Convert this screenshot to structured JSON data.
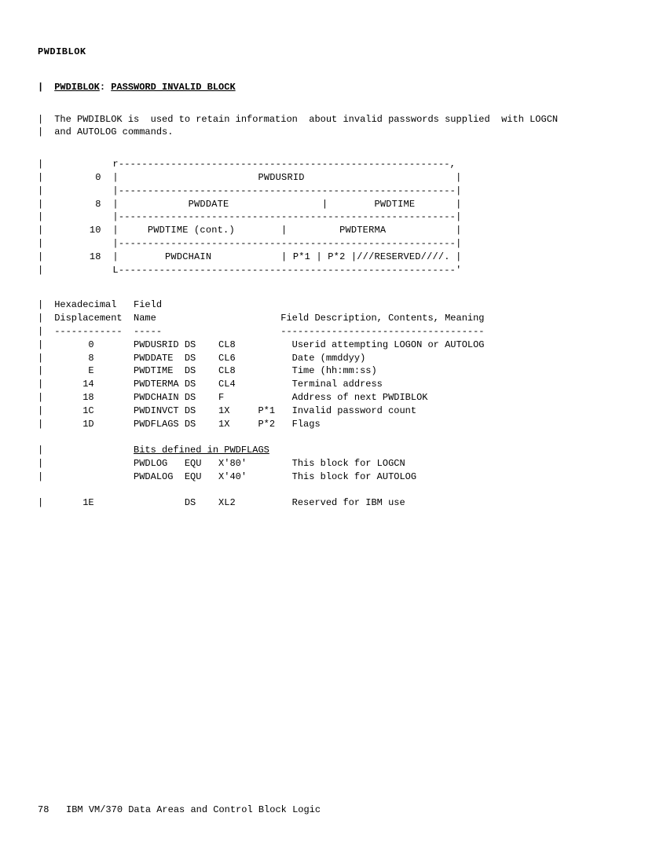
{
  "header": {
    "label": "PWDIBLOK"
  },
  "title": {
    "name": "PWDIBLOK",
    "sep": ":",
    "rest": "PASSWORD INVALID BLOCK"
  },
  "description": {
    "line1": "The PWDIBLOK is  used to retain information  about invalid passwords supplied  with LOGCN",
    "line2": "and AUTOLOG commands."
  },
  "diagram": {
    "top": "          r---------------------------------------------------------,",
    "row0": "       0  |                        PWDUSRID                          |",
    "sep0": "          |----------------------------------------------------------|",
    "row8": "       8  |            PWDDATE                |        PWDTIME       |",
    "sep8": "          |----------------------------------------------------------|",
    "row10": "      10  |     PWDTIME (cont.)        |         PWDTERMA            |",
    "sep10": "          |----------------------------------------------------------|",
    "row18": "      18  |        PWDCHAIN            | P*1 | P*2 |///RESERVED////. |",
    "bottom": "          L----------------------------------------------------------'"
  },
  "fieldTable": {
    "hdr1": "Hexadecimal   Field",
    "hdr2": "Displacement  Name                      Field Description, Contents, Meaning",
    "hdr3": "------------  -----                     ------------------------------------",
    "rows": [
      "      0       PWDUSRID DS    CL8          Userid attempting LOGON or AUTOLOG",
      "      8       PWDDATE  DS    CL6          Date (mmddyy)",
      "      E       PWDTIME  DS    CL8          Time (hh:mm:ss)",
      "     14       PWDTERMA DS    CL4          Terminal address",
      "     18       PWDCHAIN DS    F            Address of next PWDIBLOK",
      "     1C       PWDINVCT DS    1X     P*1   Invalid password count",
      "     1D       PWDFLAGS DS    1X     P*2   Flags"
    ],
    "bitsTitle": "              Bits defined in PWDFLAGS",
    "bitRows": [
      "              PWDLOG   EQU   X'80'        This block for LOGCN",
      "              PWDALOG  EQU   X'40'        This block for AUTOLOG"
    ],
    "reservedRow": "     1E                DS    XL2          Reserved for IBM use"
  },
  "footer": {
    "pageNum": "78",
    "text": "IBM VM/370 Data Areas and Control Block Logic"
  }
}
